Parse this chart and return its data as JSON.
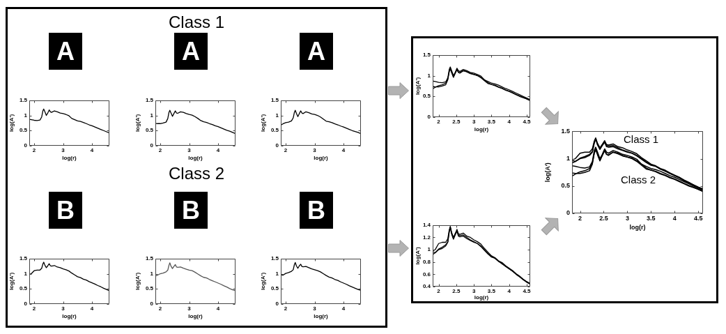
{
  "chart_data": [
    {
      "type": "other",
      "title": "Class 1",
      "annotations": [
        "A",
        "A",
        "A"
      ]
    },
    {
      "type": "line",
      "xlabel": "log(r)",
      "ylabel": "log(A')",
      "x": [
        1.83,
        1.9,
        2,
        2.1,
        2.2,
        2.26,
        2.3,
        2.33,
        2.37,
        2.42,
        2.47,
        2.52,
        2.56,
        2.6,
        2.7,
        2.8,
        2.9,
        3,
        3.1,
        3.2,
        3.3,
        3.4,
        3.5,
        3.6,
        3.7,
        3.8,
        3.9,
        4,
        4.1,
        4.2,
        4.3,
        4.4,
        4.5,
        4.6
      ],
      "xlim": [
        1.83,
        4.6
      ],
      "ylim": [
        0,
        1.5
      ],
      "xticks": [
        2,
        3,
        4
      ],
      "yticks": [
        0,
        0.5,
        1,
        1.5
      ],
      "series": [
        {
          "color": "#000000",
          "values": [
            0.87,
            0.86,
            0.84,
            0.83,
            0.85,
            0.95,
            1.15,
            1.21,
            1.12,
            1.0,
            1.08,
            1.18,
            1.12,
            1.1,
            1.15,
            1.12,
            1.08,
            1.06,
            1.03,
            0.99,
            0.9,
            0.86,
            0.82,
            0.8,
            0.77,
            0.73,
            0.69,
            0.66,
            0.62,
            0.58,
            0.54,
            0.5,
            0.46,
            0.42
          ]
        }
      ]
    },
    {
      "type": "line",
      "xlabel": "log(r)",
      "ylabel": "log(A')",
      "x": [
        1.83,
        1.9,
        2,
        2.1,
        2.2,
        2.26,
        2.3,
        2.33,
        2.37,
        2.42,
        2.47,
        2.52,
        2.56,
        2.6,
        2.7,
        2.8,
        2.9,
        3,
        3.1,
        3.2,
        3.3,
        3.4,
        3.5,
        3.6,
        3.7,
        3.8,
        3.9,
        4,
        4.1,
        4.2,
        4.3,
        4.4,
        4.5,
        4.6
      ],
      "xlim": [
        1.83,
        4.6
      ],
      "ylim": [
        0,
        1.5
      ],
      "xticks": [
        2,
        3,
        4
      ],
      "yticks": [
        0,
        0.5,
        1,
        1.5
      ],
      "series": [
        {
          "color": "#000000",
          "values": [
            0.74,
            0.73,
            0.73,
            0.75,
            0.78,
            0.9,
            1.1,
            1.17,
            1.08,
            0.97,
            1.06,
            1.15,
            1.08,
            1.07,
            1.12,
            1.1,
            1.06,
            1.03,
            1.01,
            0.96,
            0.9,
            0.83,
            0.79,
            0.77,
            0.73,
            0.7,
            0.66,
            0.63,
            0.59,
            0.55,
            0.51,
            0.48,
            0.44,
            0.4
          ]
        }
      ]
    },
    {
      "type": "line",
      "xlabel": "log(r)",
      "ylabel": "log(A')",
      "x": [
        1.83,
        1.9,
        2,
        2.1,
        2.2,
        2.26,
        2.3,
        2.33,
        2.37,
        2.42,
        2.47,
        2.52,
        2.56,
        2.6,
        2.7,
        2.8,
        2.9,
        3,
        3.1,
        3.2,
        3.3,
        3.4,
        3.5,
        3.6,
        3.7,
        3.8,
        3.9,
        4,
        4.1,
        4.2,
        4.3,
        4.4,
        4.5,
        4.6
      ],
      "xlim": [
        1.83,
        4.6
      ],
      "ylim": [
        0,
        1.5
      ],
      "xticks": [
        2,
        3,
        4
      ],
      "yticks": [
        0,
        0.5,
        1,
        1.5
      ],
      "series": [
        {
          "color": "#000000",
          "values": [
            0.68,
            0.72,
            0.76,
            0.78,
            0.82,
            0.92,
            1.1,
            1.17,
            1.07,
            0.96,
            1.06,
            1.15,
            1.08,
            1.06,
            1.12,
            1.09,
            1.05,
            1.03,
            1.0,
            0.95,
            0.88,
            0.81,
            0.79,
            0.76,
            0.72,
            0.69,
            0.65,
            0.62,
            0.58,
            0.54,
            0.5,
            0.47,
            0.44,
            0.4
          ]
        }
      ]
    },
    {
      "type": "other",
      "title": "Class 2",
      "annotations": [
        "B",
        "B",
        "B"
      ]
    },
    {
      "type": "line",
      "xlabel": "log(r)",
      "ylabel": "log(A')",
      "x": [
        1.83,
        1.9,
        2,
        2.1,
        2.2,
        2.26,
        2.3,
        2.33,
        2.37,
        2.42,
        2.47,
        2.52,
        2.56,
        2.6,
        2.7,
        2.8,
        2.9,
        3,
        3.1,
        3.2,
        3.3,
        3.4,
        3.5,
        3.6,
        3.7,
        3.8,
        3.9,
        4,
        4.1,
        4.2,
        4.3,
        4.4,
        4.5,
        4.6
      ],
      "xlim": [
        1.83,
        4.6
      ],
      "ylim": [
        0,
        1.5
      ],
      "xticks": [
        2,
        3,
        4
      ],
      "yticks": [
        0,
        0.5,
        1,
        1.5
      ],
      "series": [
        {
          "color": "#000000",
          "values": [
            0.98,
            1.0,
            1.1,
            1.12,
            1.12,
            1.18,
            1.32,
            1.38,
            1.28,
            1.2,
            1.26,
            1.33,
            1.26,
            1.25,
            1.27,
            1.22,
            1.2,
            1.16,
            1.13,
            1.09,
            1.02,
            0.96,
            0.9,
            0.87,
            0.82,
            0.79,
            0.74,
            0.7,
            0.66,
            0.61,
            0.57,
            0.52,
            0.48,
            0.44
          ]
        }
      ]
    },
    {
      "type": "line",
      "xlabel": "log(r)",
      "ylabel": "log(A')",
      "x": [
        1.83,
        1.9,
        2,
        2.1,
        2.2,
        2.26,
        2.3,
        2.33,
        2.37,
        2.42,
        2.47,
        2.52,
        2.56,
        2.6,
        2.7,
        2.8,
        2.9,
        3,
        3.1,
        3.2,
        3.3,
        3.4,
        3.5,
        3.6,
        3.7,
        3.8,
        3.9,
        4,
        4.1,
        4.2,
        4.3,
        4.4,
        4.5,
        4.6
      ],
      "xlim": [
        1.83,
        4.6
      ],
      "ylim": [
        0,
        1.5
      ],
      "xticks": [
        2,
        3,
        4
      ],
      "yticks": [
        0,
        0.5,
        1,
        1.5
      ],
      "series": [
        {
          "color": "#555555",
          "values": [
            0.92,
            0.95,
            1.0,
            1.02,
            1.06,
            1.12,
            1.28,
            1.36,
            1.25,
            1.17,
            1.24,
            1.3,
            1.22,
            1.21,
            1.22,
            1.18,
            1.15,
            1.12,
            1.1,
            1.05,
            0.99,
            0.93,
            0.88,
            0.86,
            0.81,
            0.77,
            0.73,
            0.69,
            0.65,
            0.6,
            0.56,
            0.51,
            0.47,
            0.44
          ]
        }
      ]
    },
    {
      "type": "line",
      "xlabel": "log(r)",
      "ylabel": "log(A')",
      "x": [
        1.83,
        1.9,
        2,
        2.1,
        2.2,
        2.26,
        2.3,
        2.33,
        2.37,
        2.42,
        2.47,
        2.52,
        2.56,
        2.6,
        2.7,
        2.8,
        2.9,
        3,
        3.1,
        3.2,
        3.3,
        3.4,
        3.5,
        3.6,
        3.7,
        3.8,
        3.9,
        4,
        4.1,
        4.2,
        4.3,
        4.4,
        4.5,
        4.6
      ],
      "xlim": [
        1.83,
        4.6
      ],
      "ylim": [
        0,
        1.5
      ],
      "xticks": [
        2,
        3,
        4
      ],
      "yticks": [
        0,
        0.5,
        1,
        1.5
      ],
      "series": [
        {
          "color": "#000000",
          "values": [
            0.97,
            0.95,
            1.01,
            1.04,
            1.08,
            1.13,
            1.3,
            1.37,
            1.26,
            1.18,
            1.26,
            1.31,
            1.24,
            1.23,
            1.24,
            1.2,
            1.16,
            1.13,
            1.1,
            1.06,
            1.0,
            0.94,
            0.89,
            0.86,
            0.81,
            0.78,
            0.73,
            0.69,
            0.65,
            0.6,
            0.56,
            0.52,
            0.48,
            0.45
          ]
        }
      ]
    },
    {
      "type": "line",
      "xlabel": "log(r)",
      "ylabel": "log(A')",
      "x": [
        1.83,
        1.9,
        2,
        2.1,
        2.2,
        2.26,
        2.3,
        2.33,
        2.37,
        2.42,
        2.47,
        2.52,
        2.56,
        2.6,
        2.7,
        2.8,
        2.9,
        3,
        3.1,
        3.2,
        3.3,
        3.4,
        3.5,
        3.6,
        3.7,
        3.8,
        3.9,
        4,
        4.1,
        4.2,
        4.3,
        4.4,
        4.5,
        4.6
      ],
      "xlim": [
        1.83,
        4.6
      ],
      "ylim": [
        0,
        1.5
      ],
      "xticks": [
        2,
        2.5,
        3,
        3.5,
        4,
        4.5
      ],
      "yticks": [
        0,
        0.5,
        1,
        1.5
      ],
      "series": [
        {
          "color": "#000000",
          "values": [
            0.87,
            0.86,
            0.84,
            0.83,
            0.85,
            0.95,
            1.15,
            1.21,
            1.12,
            1.0,
            1.08,
            1.18,
            1.12,
            1.1,
            1.15,
            1.12,
            1.08,
            1.06,
            1.03,
            0.99,
            0.9,
            0.86,
            0.82,
            0.8,
            0.77,
            0.73,
            0.69,
            0.66,
            0.62,
            0.58,
            0.54,
            0.5,
            0.46,
            0.42
          ]
        },
        {
          "color": "#000000",
          "values": [
            0.74,
            0.73,
            0.73,
            0.75,
            0.78,
            0.9,
            1.1,
            1.17,
            1.08,
            0.97,
            1.06,
            1.15,
            1.08,
            1.07,
            1.12,
            1.1,
            1.06,
            1.03,
            1.01,
            0.96,
            0.9,
            0.83,
            0.79,
            0.77,
            0.73,
            0.7,
            0.66,
            0.63,
            0.59,
            0.55,
            0.51,
            0.48,
            0.44,
            0.4
          ]
        },
        {
          "color": "#000000",
          "values": [
            0.68,
            0.72,
            0.76,
            0.78,
            0.82,
            0.92,
            1.1,
            1.17,
            1.07,
            0.96,
            1.06,
            1.15,
            1.08,
            1.06,
            1.12,
            1.09,
            1.05,
            1.03,
            1.0,
            0.95,
            0.88,
            0.81,
            0.79,
            0.76,
            0.72,
            0.69,
            0.65,
            0.62,
            0.58,
            0.54,
            0.5,
            0.47,
            0.44,
            0.4
          ]
        }
      ]
    },
    {
      "type": "line",
      "xlabel": "log(r)",
      "ylabel": "log(A')",
      "x": [
        1.83,
        1.9,
        2,
        2.1,
        2.2,
        2.26,
        2.3,
        2.33,
        2.37,
        2.42,
        2.47,
        2.52,
        2.56,
        2.6,
        2.7,
        2.8,
        2.9,
        3,
        3.1,
        3.2,
        3.3,
        3.4,
        3.5,
        3.6,
        3.7,
        3.8,
        3.9,
        4,
        4.1,
        4.2,
        4.3,
        4.4,
        4.5,
        4.6
      ],
      "xlim": [
        1.83,
        4.6
      ],
      "ylim": [
        0.4,
        1.4
      ],
      "xticks": [
        2,
        2.5,
        3,
        3.5,
        4,
        4.5
      ],
      "yticks": [
        0.4,
        0.6,
        0.8,
        1,
        1.2,
        1.4
      ],
      "series": [
        {
          "color": "#000000",
          "values": [
            0.98,
            1.0,
            1.1,
            1.12,
            1.12,
            1.18,
            1.32,
            1.38,
            1.28,
            1.2,
            1.26,
            1.33,
            1.26,
            1.25,
            1.27,
            1.22,
            1.2,
            1.16,
            1.13,
            1.09,
            1.02,
            0.96,
            0.9,
            0.87,
            0.82,
            0.79,
            0.74,
            0.7,
            0.66,
            0.61,
            0.57,
            0.52,
            0.48,
            0.44
          ]
        },
        {
          "color": "#000000",
          "values": [
            0.92,
            0.95,
            1.0,
            1.02,
            1.06,
            1.12,
            1.28,
            1.36,
            1.25,
            1.17,
            1.24,
            1.3,
            1.22,
            1.21,
            1.22,
            1.18,
            1.15,
            1.12,
            1.1,
            1.05,
            0.99,
            0.93,
            0.88,
            0.86,
            0.81,
            0.77,
            0.73,
            0.69,
            0.65,
            0.6,
            0.56,
            0.51,
            0.47,
            0.44
          ]
        },
        {
          "color": "#000000",
          "values": [
            0.97,
            0.95,
            1.01,
            1.04,
            1.08,
            1.13,
            1.3,
            1.37,
            1.26,
            1.18,
            1.26,
            1.31,
            1.24,
            1.23,
            1.24,
            1.2,
            1.16,
            1.13,
            1.1,
            1.06,
            1.0,
            0.94,
            0.89,
            0.86,
            0.81,
            0.78,
            0.73,
            0.69,
            0.65,
            0.6,
            0.56,
            0.52,
            0.48,
            0.45
          ]
        }
      ]
    },
    {
      "type": "line",
      "xlabel": "log(r)",
      "ylabel": "log(A')",
      "x": [
        1.83,
        1.9,
        2,
        2.1,
        2.2,
        2.26,
        2.3,
        2.33,
        2.37,
        2.42,
        2.47,
        2.52,
        2.56,
        2.6,
        2.7,
        2.8,
        2.9,
        3,
        3.1,
        3.2,
        3.3,
        3.4,
        3.5,
        3.6,
        3.7,
        3.8,
        3.9,
        4,
        4.1,
        4.2,
        4.3,
        4.4,
        4.5,
        4.6
      ],
      "xlim": [
        1.83,
        4.6
      ],
      "ylim": [
        0,
        1.5
      ],
      "xticks": [
        2,
        2.5,
        3,
        3.5,
        4,
        4.5
      ],
      "yticks": [
        0,
        0.5,
        1,
        1.5
      ],
      "annotations": [
        "Class 1",
        "Class 2"
      ],
      "series": [
        {
          "color": "#000000",
          "values": [
            0.87,
            0.86,
            0.84,
            0.83,
            0.85,
            0.95,
            1.15,
            1.21,
            1.12,
            1.0,
            1.08,
            1.18,
            1.12,
            1.1,
            1.15,
            1.12,
            1.08,
            1.06,
            1.03,
            0.99,
            0.9,
            0.86,
            0.82,
            0.8,
            0.77,
            0.73,
            0.69,
            0.66,
            0.62,
            0.58,
            0.54,
            0.5,
            0.46,
            0.42
          ]
        },
        {
          "color": "#000000",
          "values": [
            0.74,
            0.73,
            0.73,
            0.75,
            0.78,
            0.9,
            1.1,
            1.17,
            1.08,
            0.97,
            1.06,
            1.15,
            1.08,
            1.07,
            1.12,
            1.1,
            1.06,
            1.03,
            1.01,
            0.96,
            0.9,
            0.83,
            0.79,
            0.77,
            0.73,
            0.7,
            0.66,
            0.63,
            0.59,
            0.55,
            0.51,
            0.48,
            0.44,
            0.4
          ]
        },
        {
          "color": "#000000",
          "values": [
            0.68,
            0.72,
            0.76,
            0.78,
            0.82,
            0.92,
            1.1,
            1.17,
            1.07,
            0.96,
            1.06,
            1.15,
            1.08,
            1.06,
            1.12,
            1.09,
            1.05,
            1.03,
            1.0,
            0.95,
            0.88,
            0.81,
            0.79,
            0.76,
            0.72,
            0.69,
            0.65,
            0.62,
            0.58,
            0.54,
            0.5,
            0.47,
            0.44,
            0.4
          ]
        },
        {
          "color": "#000000",
          "values": [
            0.98,
            1.0,
            1.1,
            1.12,
            1.12,
            1.18,
            1.32,
            1.38,
            1.28,
            1.2,
            1.26,
            1.33,
            1.26,
            1.25,
            1.27,
            1.22,
            1.2,
            1.16,
            1.13,
            1.09,
            1.02,
            0.96,
            0.9,
            0.87,
            0.82,
            0.79,
            0.74,
            0.7,
            0.66,
            0.61,
            0.57,
            0.52,
            0.48,
            0.44
          ]
        },
        {
          "color": "#000000",
          "values": [
            0.92,
            0.95,
            1.0,
            1.02,
            1.06,
            1.12,
            1.28,
            1.36,
            1.25,
            1.17,
            1.24,
            1.3,
            1.22,
            1.21,
            1.22,
            1.18,
            1.15,
            1.12,
            1.1,
            1.05,
            0.99,
            0.93,
            0.88,
            0.86,
            0.81,
            0.77,
            0.73,
            0.69,
            0.65,
            0.6,
            0.56,
            0.51,
            0.47,
            0.44
          ]
        },
        {
          "color": "#000000",
          "values": [
            0.97,
            0.95,
            1.01,
            1.04,
            1.08,
            1.13,
            1.3,
            1.37,
            1.26,
            1.18,
            1.26,
            1.31,
            1.24,
            1.23,
            1.24,
            1.2,
            1.16,
            1.13,
            1.1,
            1.06,
            1.0,
            0.94,
            0.89,
            0.86,
            0.81,
            0.78,
            0.73,
            0.69,
            0.65,
            0.6,
            0.56,
            0.52,
            0.48,
            0.45
          ]
        }
      ]
    }
  ]
}
